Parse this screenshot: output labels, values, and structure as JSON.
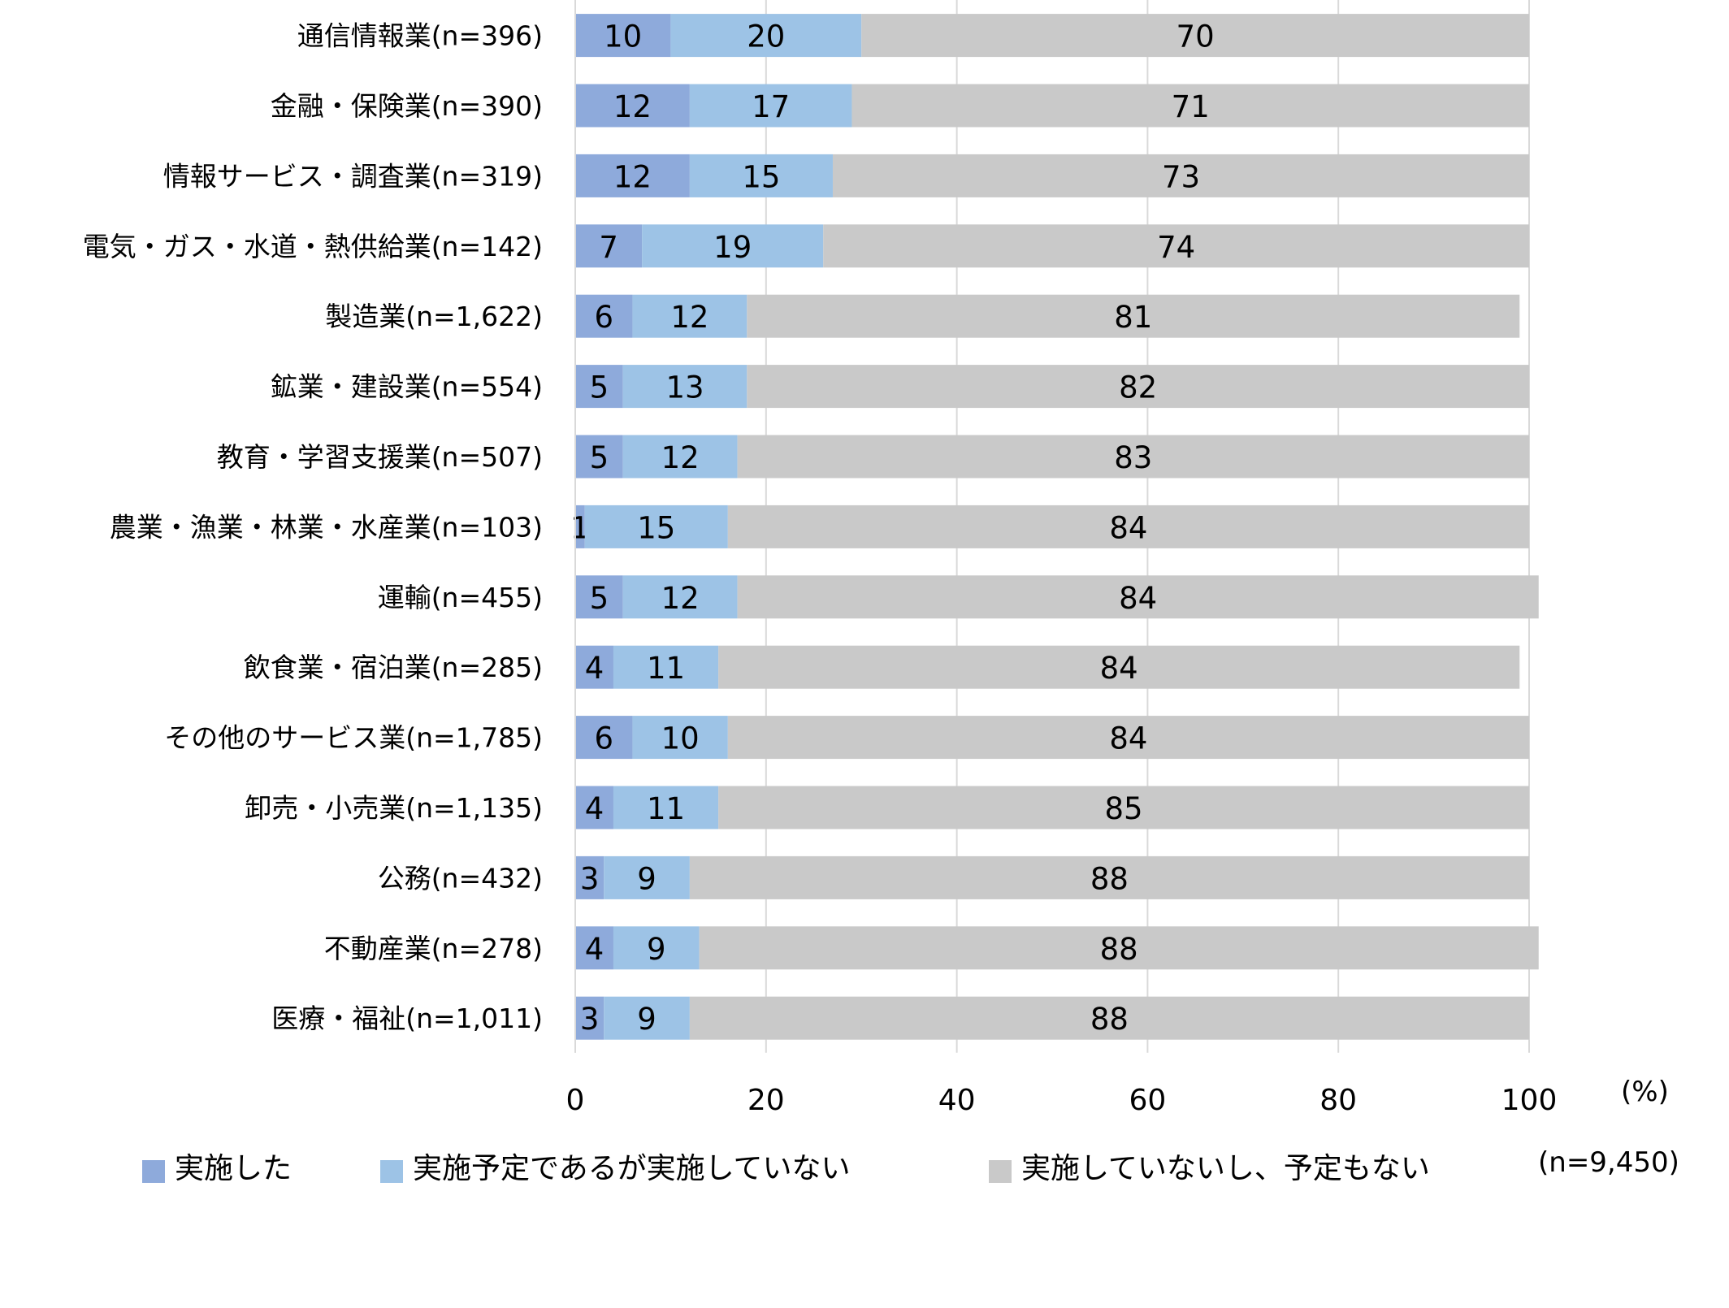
{
  "chart_data": {
    "type": "bar",
    "orientation": "horizontal",
    "stacked": true,
    "categories": [
      "通信情報業(n=396)",
      "金融・保険業(n=390)",
      "情報サービス・調査業(n=319)",
      "電気・ガス・水道・熱供給業(n=142)",
      "製造業(n=1,622)",
      "鉱業・建設業(n=554)",
      "教育・学習支援業(n=507)",
      "農業・漁業・林業・水産業(n=103)",
      "運輸(n=455)",
      "飲食業・宿泊業(n=285)",
      "その他のサービス業(n=1,785)",
      "卸売・小売業(n=1,135)",
      "公務(n=432)",
      "不動産業(n=278)",
      "医療・福祉(n=1,011)"
    ],
    "series": [
      {
        "name": "実施した",
        "color": "#8eaadb",
        "values": [
          10,
          12,
          12,
          7,
          6,
          5,
          5,
          1,
          5,
          4,
          6,
          4,
          3,
          4,
          3
        ]
      },
      {
        "name": "実施予定であるが実施していない",
        "color": "#9dc3e6",
        "values": [
          20,
          17,
          15,
          19,
          12,
          13,
          12,
          15,
          12,
          11,
          10,
          11,
          9,
          9,
          9
        ]
      },
      {
        "name": "実施していないし、予定もない",
        "color": "#c9c9c9",
        "values": [
          70,
          71,
          73,
          74,
          81,
          82,
          83,
          84,
          84,
          84,
          84,
          85,
          88,
          88,
          88
        ]
      }
    ],
    "xlim": [
      0,
      100
    ],
    "xticks": [
      "0",
      "20",
      "40",
      "60",
      "80",
      "100"
    ],
    "xunit": "(%)",
    "grid": true,
    "legend_position": "bottom",
    "note": "(n=9,450)"
  }
}
